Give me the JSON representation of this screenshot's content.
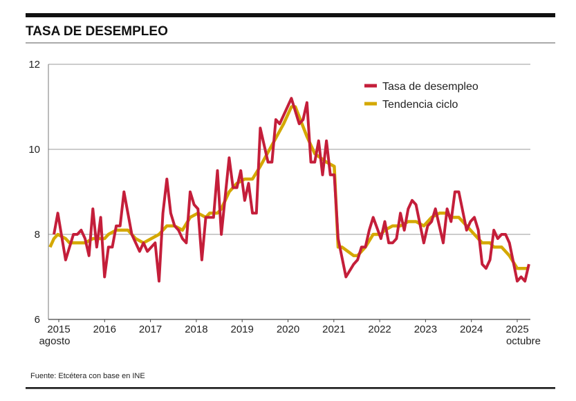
{
  "chart_data": {
    "type": "line",
    "title": "TASA DE DESEMPLEO",
    "source": "Fuente: Etcétera con base en INE",
    "ylim": [
      6,
      12
    ],
    "y_ticks": [
      "6",
      "8",
      "10",
      "12"
    ],
    "x_ticks": [
      "2015",
      "2016",
      "2017",
      "2018",
      "2019",
      "2020",
      "2021",
      "2022",
      "2023",
      "2024",
      "2025"
    ],
    "x_start_label": "agosto",
    "x_end_label": "octubre",
    "grid": true,
    "legend_position": "top-right",
    "colors": {
      "tasa": "#c41e3a",
      "tendencia": "#d4a800"
    },
    "series": [
      {
        "name": "Tasa de desempleo",
        "color": "#c41e3a",
        "points": [
          [
            "2015-08",
            8.0
          ],
          [
            "2015-09",
            8.5
          ],
          [
            "2015-11",
            7.4
          ],
          [
            "2016-01",
            8.0
          ],
          [
            "2016-02",
            8.0
          ],
          [
            "2016-03",
            8.1
          ],
          [
            "2016-04",
            7.9
          ],
          [
            "2016-05",
            7.5
          ],
          [
            "2016-06",
            8.6
          ],
          [
            "2016-07",
            7.7
          ],
          [
            "2016-08",
            8.4
          ],
          [
            "2016-09",
            7.0
          ],
          [
            "2016-10",
            7.7
          ],
          [
            "2016-11",
            7.7
          ],
          [
            "2016-12",
            8.2
          ],
          [
            "2017-01",
            8.2
          ],
          [
            "2017-02",
            9.0
          ],
          [
            "2017-04",
            8.0
          ],
          [
            "2017-06",
            7.6
          ],
          [
            "2017-07",
            7.8
          ],
          [
            "2017-08",
            7.6
          ],
          [
            "2017-10",
            7.8
          ],
          [
            "2017-11",
            6.9
          ],
          [
            "2017-12",
            8.5
          ],
          [
            "2018-01",
            9.3
          ],
          [
            "2018-02",
            8.5
          ],
          [
            "2018-03",
            8.2
          ],
          [
            "2018-04",
            8.1
          ],
          [
            "2018-05",
            7.9
          ],
          [
            "2018-06",
            7.8
          ],
          [
            "2018-07",
            9.0
          ],
          [
            "2018-08",
            8.7
          ],
          [
            "2018-09",
            8.6
          ],
          [
            "2018-10",
            7.4
          ],
          [
            "2018-11",
            8.4
          ],
          [
            "2019-01",
            8.4
          ],
          [
            "2019-02",
            9.5
          ],
          [
            "2019-03",
            8.0
          ],
          [
            "2019-05",
            9.8
          ],
          [
            "2019-06",
            9.1
          ],
          [
            "2019-07",
            9.1
          ],
          [
            "2019-08",
            9.5
          ],
          [
            "2019-09",
            8.8
          ],
          [
            "2019-10",
            9.2
          ],
          [
            "2019-11",
            8.5
          ],
          [
            "2019-12",
            8.5
          ],
          [
            "2020-01",
            10.5
          ],
          [
            "2020-03",
            9.7
          ],
          [
            "2020-04",
            9.7
          ],
          [
            "2020-05",
            10.7
          ],
          [
            "2020-06",
            10.6
          ],
          [
            "2020-09",
            11.2
          ],
          [
            "2020-11",
            10.6
          ],
          [
            "2020-12",
            10.7
          ],
          [
            "2021-01",
            11.1
          ],
          [
            "2021-02",
            9.7
          ],
          [
            "2021-03",
            9.7
          ],
          [
            "2021-04",
            10.2
          ],
          [
            "2021-05",
            9.4
          ],
          [
            "2021-06",
            10.2
          ],
          [
            "2021-07",
            9.4
          ],
          [
            "2021-08",
            9.4
          ],
          [
            "2021-09",
            7.9
          ],
          [
            "2021-11",
            7.0
          ],
          [
            "2022-01",
            7.3
          ],
          [
            "2022-02",
            7.4
          ],
          [
            "2022-03",
            7.7
          ],
          [
            "2022-04",
            7.7
          ],
          [
            "2022-05",
            8.1
          ],
          [
            "2022-06",
            8.4
          ],
          [
            "2022-08",
            7.9
          ],
          [
            "2022-09",
            8.3
          ],
          [
            "2022-10",
            7.8
          ],
          [
            "2022-11",
            7.8
          ],
          [
            "2022-12",
            7.9
          ],
          [
            "2023-01",
            8.5
          ],
          [
            "2023-02",
            8.1
          ],
          [
            "2023-03",
            8.6
          ],
          [
            "2023-04",
            8.8
          ],
          [
            "2023-05",
            8.7
          ],
          [
            "2023-07",
            7.8
          ],
          [
            "2023-08",
            8.2
          ],
          [
            "2023-09",
            8.3
          ],
          [
            "2023-10",
            8.6
          ],
          [
            "2023-12",
            7.8
          ],
          [
            "2024-01",
            8.6
          ],
          [
            "2024-02",
            8.3
          ],
          [
            "2024-03",
            9.0
          ],
          [
            "2024-04",
            9.0
          ],
          [
            "2024-06",
            8.1
          ],
          [
            "2024-07",
            8.3
          ],
          [
            "2024-08",
            8.4
          ],
          [
            "2024-09",
            8.1
          ],
          [
            "2024-10",
            7.3
          ],
          [
            "2024-11",
            7.2
          ],
          [
            "2024-12",
            7.4
          ],
          [
            "2025-01",
            8.1
          ],
          [
            "2025-02",
            7.9
          ],
          [
            "2025-03",
            8.0
          ],
          [
            "2025-04",
            8.0
          ],
          [
            "2025-05",
            7.8
          ],
          [
            "2025-07",
            6.9
          ],
          [
            "2025-08",
            7.0
          ],
          [
            "2025-09",
            6.9
          ],
          [
            "2025-10",
            7.3
          ]
        ]
      },
      {
        "name": "Tendencia ciclo",
        "color": "#d4a800",
        "points": [
          [
            "2015-07",
            7.7
          ],
          [
            "2015-08",
            7.9
          ],
          [
            "2015-09",
            8.0
          ],
          [
            "2015-11",
            7.9
          ],
          [
            "2015-12",
            7.8
          ],
          [
            "2016-04",
            7.8
          ],
          [
            "2016-06",
            7.9
          ],
          [
            "2016-09",
            7.9
          ],
          [
            "2016-10",
            8.0
          ],
          [
            "2016-12",
            8.1
          ],
          [
            "2017-03",
            8.1
          ],
          [
            "2017-05",
            7.9
          ],
          [
            "2017-07",
            7.8
          ],
          [
            "2017-09",
            7.9
          ],
          [
            "2017-11",
            8.0
          ],
          [
            "2018-01",
            8.2
          ],
          [
            "2018-03",
            8.2
          ],
          [
            "2018-05",
            8.1
          ],
          [
            "2018-07",
            8.4
          ],
          [
            "2018-09",
            8.5
          ],
          [
            "2018-11",
            8.4
          ],
          [
            "2018-12",
            8.5
          ],
          [
            "2019-02",
            8.5
          ],
          [
            "2019-03",
            8.6
          ],
          [
            "2019-05",
            9.0
          ],
          [
            "2019-07",
            9.2
          ],
          [
            "2019-09",
            9.3
          ],
          [
            "2019-11",
            9.3
          ],
          [
            "2020-01",
            9.6
          ],
          [
            "2020-04",
            10.1
          ],
          [
            "2020-07",
            10.6
          ],
          [
            "2020-09",
            11.0
          ],
          [
            "2020-10",
            11.0
          ],
          [
            "2021-01",
            10.3
          ],
          [
            "2021-03",
            9.9
          ],
          [
            "2021-06",
            9.7
          ],
          [
            "2021-08",
            9.6
          ],
          [
            "2021-09",
            7.7
          ],
          [
            "2021-10",
            7.7
          ],
          [
            "2022-01",
            7.5
          ],
          [
            "2022-02",
            7.5
          ],
          [
            "2022-04",
            7.7
          ],
          [
            "2022-06",
            8.0
          ],
          [
            "2022-08",
            8.0
          ],
          [
            "2022-09",
            8.1
          ],
          [
            "2022-11",
            8.2
          ],
          [
            "2023-01",
            8.2
          ],
          [
            "2023-03",
            8.3
          ],
          [
            "2023-05",
            8.3
          ],
          [
            "2023-07",
            8.2
          ],
          [
            "2023-09",
            8.4
          ],
          [
            "2023-11",
            8.5
          ],
          [
            "2024-01",
            8.5
          ],
          [
            "2024-02",
            8.4
          ],
          [
            "2024-04",
            8.4
          ],
          [
            "2024-06",
            8.2
          ],
          [
            "2024-08",
            8.0
          ],
          [
            "2024-10",
            7.8
          ],
          [
            "2024-12",
            7.8
          ],
          [
            "2025-01",
            7.7
          ],
          [
            "2025-03",
            7.7
          ],
          [
            "2025-05",
            7.5
          ],
          [
            "2025-07",
            7.2
          ],
          [
            "2025-10",
            7.2
          ]
        ]
      }
    ]
  }
}
